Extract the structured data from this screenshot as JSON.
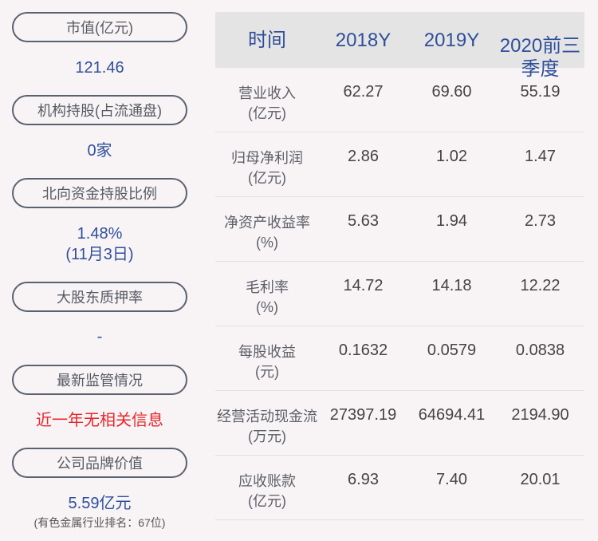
{
  "left": {
    "items": [
      {
        "label": "市值(亿元)",
        "value": "121.46"
      },
      {
        "label": "机构持股(占流通盘)",
        "value": "0家"
      },
      {
        "label": "北向资金持股比例",
        "value": "1.48%",
        "value2": "(11月3日)"
      },
      {
        "label": "大股东质押率",
        "value": "-"
      },
      {
        "label": "最新监管情况",
        "value": "近一年无相关信息"
      },
      {
        "label": "公司品牌价值",
        "value": "5.59亿元",
        "note": "(有色金属行业排名：67位)"
      }
    ]
  },
  "table": {
    "headers": [
      "时间",
      "2018Y",
      "2019Y",
      "2020前三季度"
    ],
    "rows": [
      {
        "label": "营业收入",
        "unit": "(亿元)",
        "values": [
          "62.27",
          "69.60",
          "55.19"
        ]
      },
      {
        "label": "归母净利润",
        "unit": "(亿元)",
        "values": [
          "2.86",
          "1.02",
          "1.47"
        ]
      },
      {
        "label": "净资产收益率",
        "unit": "(%)",
        "values": [
          "5.63",
          "1.94",
          "2.73"
        ]
      },
      {
        "label": "毛利率",
        "unit": "(%)",
        "values": [
          "14.72",
          "14.18",
          "12.22"
        ]
      },
      {
        "label": "每股收益",
        "unit": "(元)",
        "values": [
          "0.1632",
          "0.0579",
          "0.0838"
        ]
      },
      {
        "label": "经营活动现金流",
        "unit": "(万元)",
        "values": [
          "27397.19",
          "64694.41",
          "2194.90"
        ]
      },
      {
        "label": "应收账款",
        "unit": "(亿元)",
        "values": [
          "6.93",
          "7.40",
          "20.01"
        ]
      }
    ]
  },
  "colors": {
    "accent": "#2f4f9a",
    "alert": "#e8262a",
    "header_bg": "#e4e4e4"
  }
}
